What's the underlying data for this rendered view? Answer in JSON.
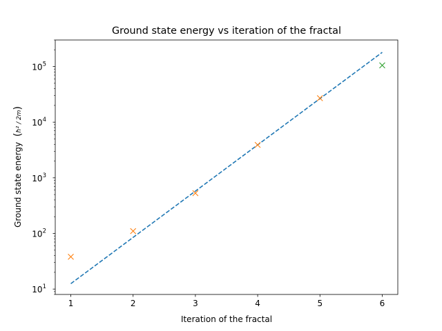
{
  "chart_data": {
    "type": "scatter",
    "title": "Ground state energy vs iteration of the fractal",
    "xlabel": "Iteration of the fractal",
    "ylabel_text": "Ground state energy",
    "ylabel_unit": "ħ² / 2m",
    "yscale": "log",
    "xlim": [
      0.75,
      6.25
    ],
    "ylim": [
      8,
      300000
    ],
    "x_ticks": [
      1,
      2,
      3,
      4,
      5,
      6
    ],
    "y_ticks": [
      {
        "value": 10,
        "label": "10",
        "exp": "1"
      },
      {
        "value": 100,
        "label": "10",
        "exp": "2"
      },
      {
        "value": 1000,
        "label": "10",
        "exp": "3"
      },
      {
        "value": 10000,
        "label": "10",
        "exp": "4"
      },
      {
        "value": 100000,
        "label": "10",
        "exp": "5"
      }
    ],
    "grid": false,
    "legend": "none",
    "series": [
      {
        "type": "line",
        "style": "dashed",
        "color": "#1f77b4",
        "x": [
          1,
          6
        ],
        "y": [
          12.5,
          180000
        ]
      },
      {
        "type": "scatter",
        "marker": "x",
        "color": "#ff7f0e",
        "x": [
          1,
          2,
          3,
          4,
          5
        ],
        "y": [
          38,
          110,
          530,
          3900,
          27000
        ]
      },
      {
        "type": "scatter",
        "marker": "x",
        "color": "#2ca02c",
        "x": [
          6
        ],
        "y": [
          105000
        ]
      }
    ]
  }
}
